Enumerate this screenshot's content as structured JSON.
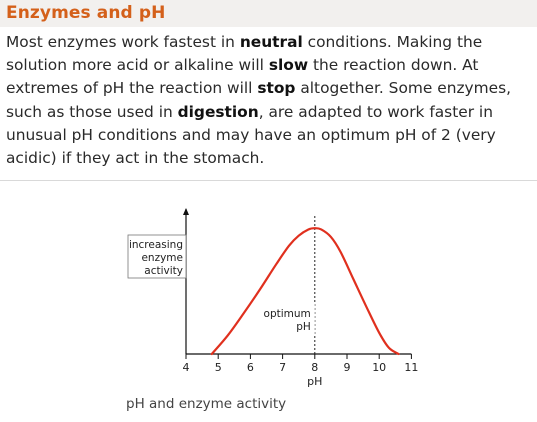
{
  "heading": "Enzymes and pH",
  "paragraph": {
    "s1": "Most enzymes work fastest in ",
    "b1": "neutral",
    "s2": " conditions. Making the solution more acid or alkaline will ",
    "b2": "slow",
    "s3": " the reaction down. At extremes of pH the reaction will ",
    "b3": "stop",
    "s4": " altogether. Some enzymes, such as those used in ",
    "b4": "digestion",
    "s5": ", are adapted to work faster in unusual pH conditions and may have an optimum pH of 2 (very acidic) if they act in the stomach."
  },
  "chart_data": {
    "type": "line",
    "xlabel": "pH",
    "ylabel_lines": [
      "increasing",
      "enzyme",
      "activity"
    ],
    "optimum_label_lines": [
      "optimum",
      "pH"
    ],
    "optimum_x": 8,
    "x_ticks": [
      4,
      5,
      6,
      7,
      8,
      9,
      10,
      11
    ],
    "xlim": [
      4,
      11
    ],
    "ylim": [
      0,
      1.1
    ],
    "curve_color": "#e0301e",
    "series": [
      {
        "x": [
          4.8,
          5.3,
          5.8,
          6.3,
          6.8,
          7.2,
          7.5,
          7.8,
          8.0,
          8.2,
          8.5,
          8.8,
          9.2,
          9.6,
          10.0,
          10.3,
          10.6
        ],
        "y": [
          0.0,
          0.15,
          0.33,
          0.52,
          0.72,
          0.87,
          0.95,
          1.0,
          1.01,
          1.0,
          0.94,
          0.82,
          0.6,
          0.38,
          0.17,
          0.05,
          0.0
        ]
      }
    ],
    "caption": "pH and enzyme activity"
  }
}
